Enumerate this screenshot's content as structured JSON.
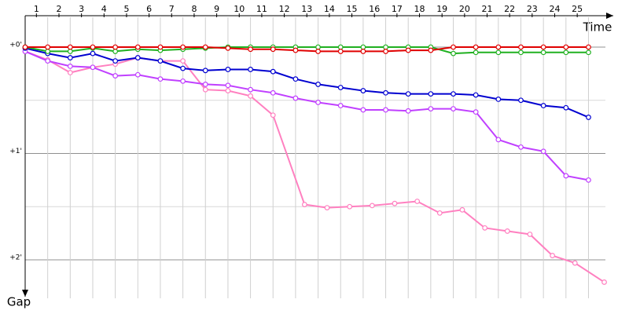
{
  "chart_data": {
    "type": "line",
    "x_label": "Time",
    "y_label": "Gap",
    "xlim": [
      0,
      26.1
    ],
    "ylim": [
      -0.3,
      2.3
    ],
    "xticks": [
      {
        "value": 0.5,
        "label": "1"
      },
      {
        "value": 1.5,
        "label": "2"
      },
      {
        "value": 2.5,
        "label": "3"
      },
      {
        "value": 3.5,
        "label": "4"
      },
      {
        "value": 4.5,
        "label": "5"
      },
      {
        "value": 5.5,
        "label": "6"
      },
      {
        "value": 6.5,
        "label": "7"
      },
      {
        "value": 7.5,
        "label": "8"
      },
      {
        "value": 8.5,
        "label": "9"
      },
      {
        "value": 9.5,
        "label": "10"
      },
      {
        "value": 10.5,
        "label": "11"
      },
      {
        "value": 11.5,
        "label": "12"
      },
      {
        "value": 12.5,
        "label": "13"
      },
      {
        "value": 13.5,
        "label": "14"
      },
      {
        "value": 14.5,
        "label": "15"
      },
      {
        "value": 15.5,
        "label": "16"
      },
      {
        "value": 16.5,
        "label": "17"
      },
      {
        "value": 17.5,
        "label": "18"
      },
      {
        "value": 18.5,
        "label": "19"
      },
      {
        "value": 19.5,
        "label": "20"
      },
      {
        "value": 20.5,
        "label": "21"
      },
      {
        "value": 21.5,
        "label": "22"
      },
      {
        "value": 22.5,
        "label": "23"
      },
      {
        "value": 23.5,
        "label": "24"
      },
      {
        "value": 24.5,
        "label": "25"
      }
    ],
    "yticks": [
      {
        "value": 0,
        "label": "+0'"
      },
      {
        "value": 1,
        "label": "+1'"
      },
      {
        "value": 2,
        "label": "+2'"
      }
    ],
    "minor_yticks": [
      0.5,
      1.5
    ],
    "grid": true,
    "series": [
      {
        "color": "#ff80c0",
        "x": [
          0,
          1,
          2,
          3,
          4,
          5,
          6,
          7,
          8,
          9,
          10,
          11,
          12.4,
          13.4,
          14.4,
          15.4,
          16.4,
          17.4,
          18.4,
          19.4,
          20.4,
          21.4,
          22.4,
          23.4,
          24.4,
          25.7
        ],
        "values": [
          0.04,
          0.12,
          0.24,
          0.19,
          0.16,
          0.1,
          0.13,
          0.13,
          0.4,
          0.41,
          0.46,
          0.64,
          1.48,
          1.51,
          1.5,
          1.49,
          1.47,
          1.45,
          1.56,
          1.53,
          1.7,
          1.73,
          1.76,
          1.96,
          2.03,
          2.21
        ]
      },
      {
        "color": "#c040ff",
        "x": [
          0,
          1,
          2,
          3,
          4,
          5,
          6,
          7,
          8,
          9,
          10,
          11,
          12,
          13,
          14,
          15,
          16,
          17,
          18,
          19,
          20,
          21,
          22,
          23,
          24,
          25
        ],
        "values": [
          0.04,
          0.13,
          0.18,
          0.19,
          0.27,
          0.26,
          0.3,
          0.32,
          0.35,
          0.36,
          0.4,
          0.43,
          0.48,
          0.52,
          0.55,
          0.59,
          0.59,
          0.6,
          0.58,
          0.58,
          0.61,
          0.87,
          0.94,
          0.98,
          1.21,
          1.25
        ]
      },
      {
        "color": "#0000d0",
        "x": [
          0,
          1,
          2,
          3,
          4,
          5,
          6,
          7,
          8,
          9,
          10,
          11,
          12,
          13,
          14,
          15,
          16,
          17,
          18,
          19,
          20,
          21,
          22,
          23,
          24,
          25
        ],
        "values": [
          0.01,
          0.06,
          0.1,
          0.06,
          0.13,
          0.1,
          0.13,
          0.2,
          0.22,
          0.21,
          0.21,
          0.23,
          0.3,
          0.35,
          0.38,
          0.41,
          0.43,
          0.44,
          0.44,
          0.44,
          0.45,
          0.49,
          0.5,
          0.55,
          0.57,
          0.66
        ]
      },
      {
        "color": "#20b020",
        "x": [
          0,
          1,
          2,
          3,
          4,
          5,
          6,
          7,
          8,
          9,
          10,
          11,
          12,
          13,
          14,
          15,
          16,
          17,
          18,
          19,
          20,
          21,
          22,
          23,
          24,
          25
        ],
        "values": [
          0,
          0.04,
          0.04,
          0.01,
          0.04,
          0.02,
          0.03,
          0.02,
          0.01,
          0,
          0,
          0,
          0,
          0,
          0,
          0,
          0,
          0,
          0,
          0.06,
          0.05,
          0.05,
          0.05,
          0.05,
          0.05,
          0.05
        ]
      },
      {
        "color": "#e00000",
        "x": [
          0,
          1,
          2,
          3,
          4,
          5,
          6,
          7,
          8,
          9,
          10,
          11,
          12,
          13,
          14,
          15,
          16,
          17,
          18,
          19,
          20,
          21,
          22,
          23,
          24,
          25
        ],
        "values": [
          0,
          0,
          0,
          0,
          0,
          0,
          0,
          0,
          0,
          0.01,
          0.02,
          0.02,
          0.03,
          0.04,
          0.04,
          0.04,
          0.04,
          0.03,
          0.03,
          0,
          0,
          0,
          0,
          0,
          0,
          0
        ]
      }
    ]
  }
}
